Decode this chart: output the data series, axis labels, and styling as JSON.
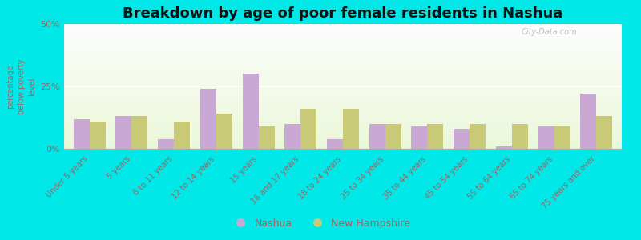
{
  "title": "Breakdown by age of poor female residents in Nashua",
  "ylabel": "percentage\nbelow poverty\nlevel",
  "categories": [
    "Under 5 years",
    "5 years",
    "6 to 11 years",
    "12 to 14 years",
    "15 years",
    "16 and 17 years",
    "18 to 24 years",
    "25 to 34 years",
    "35 to 44 years",
    "45 to 54 years",
    "55 to 64 years",
    "65 to 74 years",
    "75 years and over"
  ],
  "nashua": [
    12,
    13,
    4,
    24,
    30,
    10,
    4,
    10,
    9,
    8,
    1,
    9,
    22
  ],
  "new_hampshire": [
    11,
    13,
    11,
    14,
    9,
    16,
    16,
    10,
    10,
    10,
    10,
    9,
    13
  ],
  "nashua_color": "#c9a8d4",
  "nh_color": "#c8ca78",
  "cyan_bg": "#00e8e8",
  "ylim": [
    0,
    50
  ],
  "yticks": [
    0,
    25,
    50
  ],
  "ytick_labels": [
    "0%",
    "25%",
    "50%"
  ],
  "bar_width": 0.38,
  "title_fontsize": 13,
  "legend_nashua": "Nashua",
  "legend_nh": "New Hampshire",
  "watermark": "City-Data.com",
  "tick_color": "#996666",
  "ylabel_color": "#996666"
}
